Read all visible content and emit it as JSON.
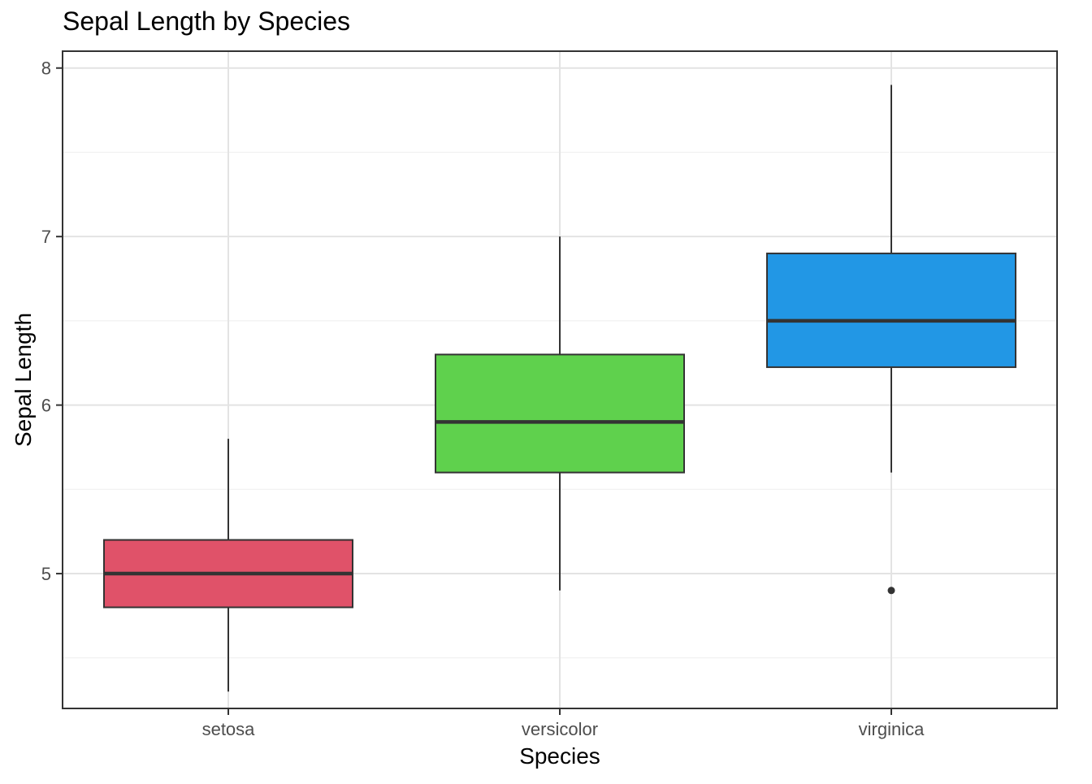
{
  "chart_data": {
    "type": "boxplot",
    "title": "Sepal Length by Species",
    "xlabel": "Species",
    "ylabel": "Sepal Length",
    "ylim": [
      4.2,
      8.1
    ],
    "yticks": [
      "5",
      "6",
      "7",
      "8"
    ],
    "grid": true,
    "theme": "black-white panel",
    "categories": [
      "setosa",
      "versicolor",
      "virginica"
    ],
    "boxes": [
      {
        "category": "setosa",
        "fill": "#E05269",
        "min": 4.3,
        "q1": 4.8,
        "median": 5.0,
        "q3": 5.2,
        "max": 5.8,
        "outliers": []
      },
      {
        "category": "versicolor",
        "fill": "#5FD14D",
        "min": 4.9,
        "q1": 5.6,
        "median": 5.9,
        "q3": 6.3,
        "max": 7.0,
        "outliers": []
      },
      {
        "category": "virginica",
        "fill": "#2297E5",
        "min": 5.6,
        "q1": 6.225,
        "median": 6.5,
        "q3": 6.9,
        "max": 7.9,
        "outliers": [
          4.9
        ]
      }
    ]
  }
}
